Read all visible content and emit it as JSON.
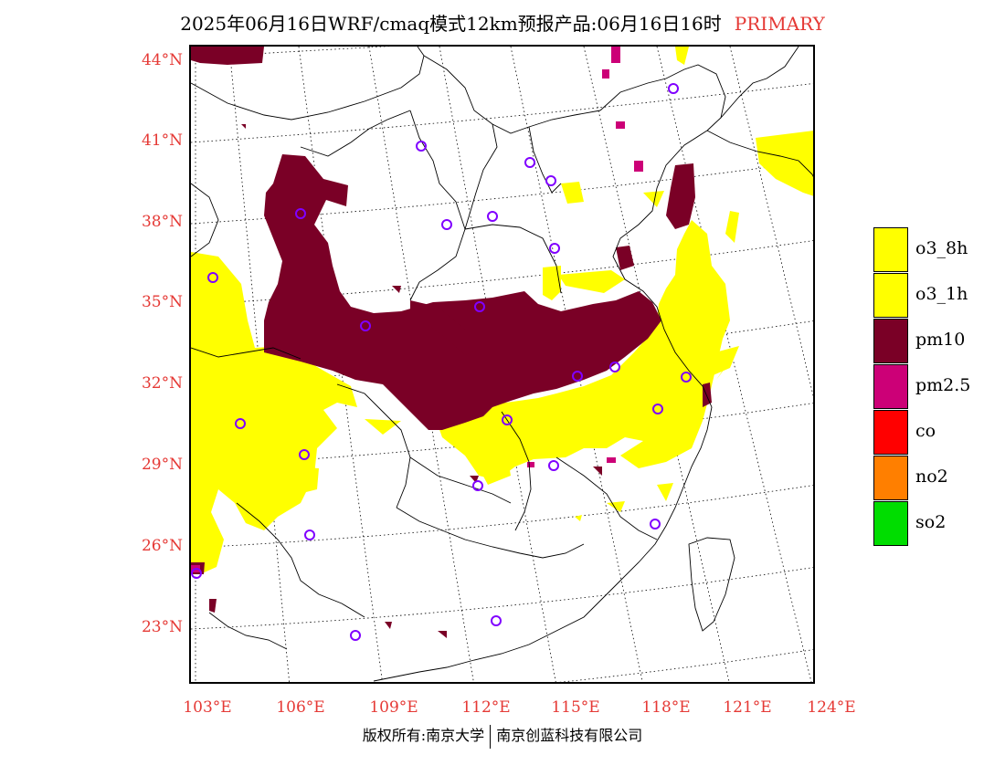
{
  "title": {
    "main": "2025年06月16日WRF/cmaq模式12km预报产品:06月16日16时",
    "tag": "PRIMARY",
    "tag_color": "#e53935"
  },
  "axes": {
    "latitudes": [
      "44°N",
      "41°N",
      "38°N",
      "35°N",
      "32°N",
      "29°N",
      "26°N",
      "23°N"
    ],
    "longitudes": [
      "103°E",
      "106°E",
      "109°E",
      "112°E",
      "115°E",
      "118°E",
      "121°E",
      "124°E"
    ],
    "label_color": "#e53935"
  },
  "legend": {
    "items": [
      {
        "label": "o3_8h",
        "color": "#ffff00"
      },
      {
        "label": "o3_1h",
        "color": "#ffff00"
      },
      {
        "label": "pm10",
        "color": "#7a0026"
      },
      {
        "label": "pm2.5",
        "color": "#cc0077"
      },
      {
        "label": "co",
        "color": "#ff0000"
      },
      {
        "label": "no2",
        "color": "#ff7f00"
      },
      {
        "label": "so2",
        "color": "#00dd00"
      }
    ]
  },
  "footer": {
    "left": "版权所有:南京大学",
    "right": "南京创蓝科技有限公司"
  },
  "colors": {
    "o3": "#ffff00",
    "pm10": "#7a0026",
    "pm25": "#cc0077",
    "station_marker": "#8000ff"
  }
}
